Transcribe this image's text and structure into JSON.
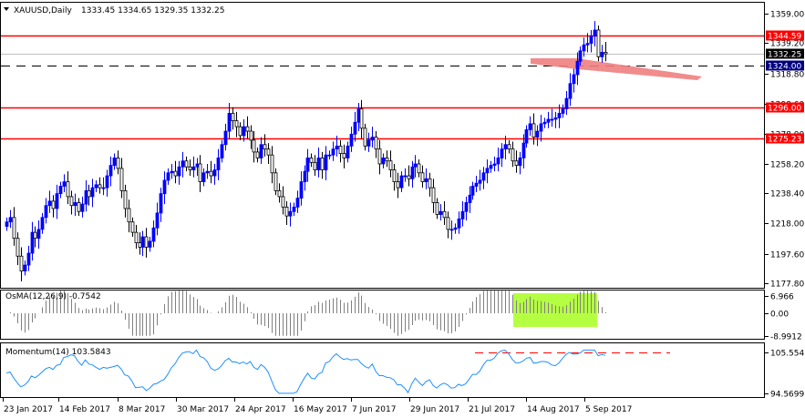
{
  "main": {
    "symbol": "XAUUSD,Daily",
    "ohlc": "1333.45 1334.65 1329.35 1332.25",
    "ticks": [
      {
        "label": "1359.00",
        "value": 1359.0
      },
      {
        "label": "1339.20",
        "value": 1339.2
      },
      {
        "label": "1318.80",
        "value": 1318.8
      },
      {
        "label": "1298.60",
        "value": 1298.6
      },
      {
        "label": "1278.00",
        "value": 1278.0
      },
      {
        "label": "1258.20",
        "value": 1258.2
      },
      {
        "label": "1238.40",
        "value": 1238.4
      },
      {
        "label": "1218.00",
        "value": 1218.0
      },
      {
        "label": "1197.60",
        "value": 1197.6
      },
      {
        "label": "1177.80",
        "value": 1177.8
      }
    ],
    "levels": [
      {
        "label": "1344.59",
        "value": 1344.59,
        "style": "solid",
        "color": "#ff0000",
        "box": "red"
      },
      {
        "label": "1332.25",
        "value": 1332.25,
        "style": "price",
        "color": "#c0c0c0",
        "box": "black"
      },
      {
        "label": "1324.00",
        "value": 1324.0,
        "style": "dashed",
        "color": "#000000",
        "box": "navy"
      },
      {
        "label": "1296.00",
        "value": 1296.0,
        "style": "solid",
        "color": "#ff0000",
        "box": "red"
      },
      {
        "label": "1275.23",
        "value": 1275.23,
        "style": "solid",
        "color": "#ff0000",
        "box": "red"
      }
    ]
  },
  "osma": {
    "title": "OsMA(12,26,9) -0.7542",
    "ticks": [
      {
        "label": "6.966",
        "value": 6.966
      },
      {
        "label": "0.00",
        "value": 0
      },
      {
        "label": "-8.9912",
        "value": -8.9912
      }
    ]
  },
  "momentum": {
    "title": "Momentum(14) 103.5843",
    "ticks": [
      {
        "label": "105.5547",
        "value": 105.5547
      },
      {
        "label": "94.5699",
        "value": 94.5699
      }
    ]
  },
  "dates": [
    "23 Jan 2017",
    "14 Feb 2017",
    "8 Mar 2017",
    "30 Mar 2017",
    "24 Apr 2017",
    "16 May 2017",
    "7 Jun 2017",
    "29 Jun 2017",
    "21 Jul 2017",
    "14 Aug 2017",
    "5 Sep 2017"
  ],
  "colors": {
    "bull": "#0000ff",
    "bear": "#000000",
    "resistance": "#ff0000",
    "zone_fill": "#f08080",
    "highlight": "#adff2f",
    "momentum_line": "#1e90ff"
  },
  "chart_data": {
    "type": "candlestick",
    "close_series": [
      1219,
      1222,
      1208,
      1196,
      1186,
      1190,
      1198,
      1212,
      1208,
      1214,
      1222,
      1230,
      1233,
      1228,
      1238,
      1243,
      1246,
      1236,
      1230,
      1232,
      1226,
      1231,
      1240,
      1236,
      1242,
      1244,
      1242,
      1242,
      1250,
      1257,
      1262,
      1255,
      1240,
      1228,
      1219,
      1212,
      1205,
      1202,
      1209,
      1202,
      1206,
      1215,
      1225,
      1238,
      1247,
      1252,
      1253,
      1250,
      1256,
      1260,
      1256,
      1254,
      1256,
      1258,
      1246,
      1252,
      1253,
      1250,
      1254,
      1262,
      1271,
      1280,
      1292,
      1287,
      1283,
      1277,
      1283,
      1280,
      1274,
      1266,
      1262,
      1271,
      1268,
      1264,
      1252,
      1240,
      1236,
      1229,
      1223,
      1226,
      1229,
      1235,
      1246,
      1253,
      1262,
      1259,
      1254,
      1262,
      1254,
      1264,
      1264,
      1268,
      1270,
      1265,
      1262,
      1270,
      1278,
      1286,
      1295,
      1282,
      1270,
      1274,
      1276,
      1268,
      1258,
      1262,
      1260,
      1254,
      1246,
      1242,
      1250,
      1250,
      1248,
      1256,
      1258,
      1252,
      1246,
      1248,
      1242,
      1232,
      1224,
      1226,
      1222,
      1214,
      1214,
      1215,
      1221,
      1226,
      1232,
      1237,
      1243,
      1245,
      1247,
      1252,
      1255,
      1257,
      1258,
      1262,
      1268,
      1271,
      1268,
      1260,
      1257,
      1262,
      1272,
      1281,
      1285,
      1276,
      1280,
      1285,
      1286,
      1288,
      1288,
      1289,
      1292,
      1295,
      1302,
      1312,
      1318,
      1327,
      1334,
      1338,
      1339,
      1344,
      1348,
      1330,
      1333,
      1332
    ]
  }
}
